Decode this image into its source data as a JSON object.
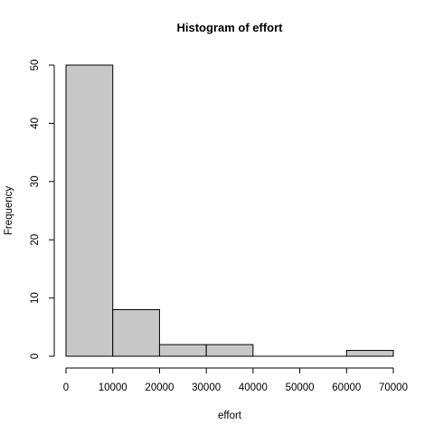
{
  "chart_data": {
    "type": "bar",
    "title": "Histogram of effort",
    "xlabel": "effort",
    "ylabel": "Frequency",
    "bins": [
      {
        "start": 0,
        "end": 10000,
        "count": 50
      },
      {
        "start": 10000,
        "end": 20000,
        "count": 8
      },
      {
        "start": 20000,
        "end": 30000,
        "count": 2
      },
      {
        "start": 30000,
        "end": 40000,
        "count": 2
      },
      {
        "start": 40000,
        "end": 50000,
        "count": 0
      },
      {
        "start": 50000,
        "end": 60000,
        "count": 0
      },
      {
        "start": 60000,
        "end": 70000,
        "count": 1
      }
    ],
    "xlim": [
      0,
      70000
    ],
    "ylim": [
      0,
      50
    ],
    "x_ticks": [
      0,
      10000,
      20000,
      30000,
      40000,
      50000,
      60000,
      70000
    ],
    "y_ticks": [
      0,
      10,
      20,
      30,
      40,
      50
    ],
    "grid": false,
    "colors": {
      "bar_fill": "#c8c8c8",
      "bar_stroke": "#000000"
    }
  }
}
